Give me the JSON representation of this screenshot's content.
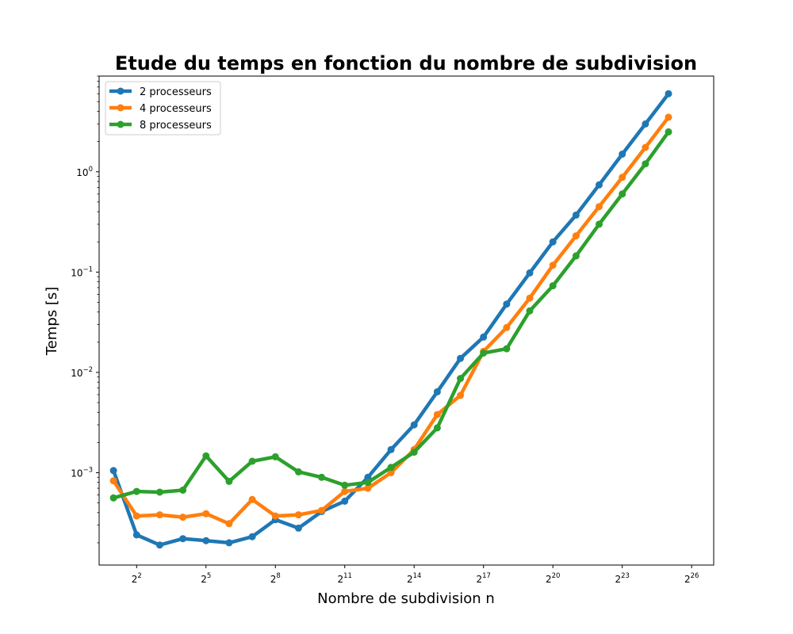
{
  "chart_data": {
    "type": "line",
    "title": "Etude du temps en fonction du nombre de subdivision",
    "xlabel": "Nombre de subdivision n",
    "ylabel": "Temps [s]",
    "x_scale": "log2",
    "y_scale": "log10",
    "xlim": [
      1.3,
      130000000
    ],
    "ylim": [
      0.00012,
      9.0
    ],
    "x_ticks": [
      {
        "value": 4,
        "base": "2",
        "exp": "2"
      },
      {
        "value": 32,
        "base": "2",
        "exp": "5"
      },
      {
        "value": 256,
        "base": "2",
        "exp": "8"
      },
      {
        "value": 2048,
        "base": "2",
        "exp": "11"
      },
      {
        "value": 16384,
        "base": "2",
        "exp": "14"
      },
      {
        "value": 131072,
        "base": "2",
        "exp": "17"
      },
      {
        "value": 1048576,
        "base": "2",
        "exp": "20"
      },
      {
        "value": 8388608,
        "base": "2",
        "exp": "23"
      },
      {
        "value": 67108864,
        "base": "2",
        "exp": "26"
      }
    ],
    "y_ticks": [
      {
        "value": 0.001,
        "base": "10",
        "exp": "−3"
      },
      {
        "value": 0.01,
        "base": "10",
        "exp": "−2"
      },
      {
        "value": 0.1,
        "base": "10",
        "exp": "−1"
      },
      {
        "value": 1,
        "base": "10",
        "exp": "0"
      }
    ],
    "grid": false,
    "legend_position": "top-left",
    "x": [
      2,
      4,
      8,
      16,
      32,
      64,
      128,
      256,
      512,
      1024,
      2048,
      4096,
      8192,
      16384,
      32768,
      65536,
      131072,
      262144,
      524288,
      1048576,
      2097152,
      4194304,
      8388608,
      16777216,
      33554432
    ],
    "series": [
      {
        "name": "2 processeurs",
        "color": "#1f77b4",
        "values": [
          0.00105,
          0.00024,
          0.00019,
          0.00022,
          0.00021,
          0.0002,
          0.00023,
          0.00034,
          0.00028,
          0.00041,
          0.00052,
          0.0009,
          0.0017,
          0.003,
          0.0064,
          0.0138,
          0.0225,
          0.048,
          0.098,
          0.2,
          0.37,
          0.74,
          1.5,
          3.0,
          6.0
        ]
      },
      {
        "name": "4 processeurs",
        "color": "#ff7f0e",
        "values": [
          0.00083,
          0.00037,
          0.00038,
          0.00036,
          0.00039,
          0.00031,
          0.00054,
          0.00037,
          0.00038,
          0.00042,
          0.00065,
          0.0007,
          0.001,
          0.0017,
          0.0038,
          0.0059,
          0.0162,
          0.028,
          0.055,
          0.117,
          0.23,
          0.45,
          0.88,
          1.75,
          3.5
        ]
      },
      {
        "name": "8 processeurs",
        "color": "#2ca02c",
        "values": [
          0.00056,
          0.00065,
          0.00064,
          0.00067,
          0.00147,
          0.00082,
          0.0013,
          0.00144,
          0.00102,
          0.0009,
          0.00075,
          0.0008,
          0.00113,
          0.0016,
          0.0028,
          0.0087,
          0.0156,
          0.0172,
          0.041,
          0.073,
          0.145,
          0.3,
          0.6,
          1.2,
          2.5
        ]
      }
    ]
  }
}
